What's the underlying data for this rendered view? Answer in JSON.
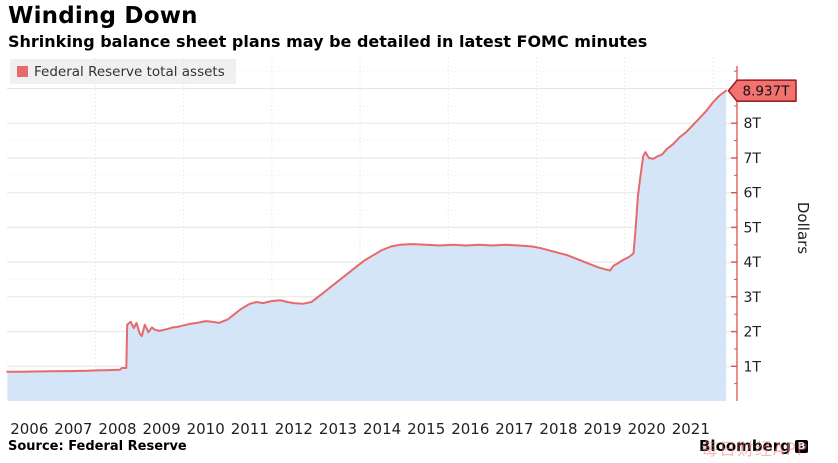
{
  "header": {
    "title": "Winding Down",
    "subtitle": "Shrinking balance sheet plans may be detailed in latest FOMC minutes"
  },
  "footer": {
    "source": "Source: Federal Reserve",
    "brand": "Bloomberg",
    "brand_logo_letter": "B",
    "watermark": "每日财经APP"
  },
  "chart_data": {
    "type": "area",
    "title": "Winding Down",
    "subtitle": "Shrinking balance sheet plans may be detailed in latest FOMC minutes",
    "ylabel": "Dollars",
    "xlabel": "",
    "legend_position": "top-left",
    "x_range": [
      2006,
      2022.55
    ],
    "y_range": [
      0,
      9.75
    ],
    "x_axis": {
      "ticks": [
        "2006",
        "2007",
        "2008",
        "2009",
        "2010",
        "2011",
        "2012",
        "2013",
        "2014",
        "2015",
        "2016",
        "2017",
        "2018",
        "2019",
        "2020",
        "2021"
      ]
    },
    "y_axis": {
      "ticks": [
        "1T",
        "2T",
        "3T",
        "4T",
        "5T",
        "6T",
        "7T",
        "8T"
      ],
      "tick_values": [
        1,
        2,
        3,
        4,
        5,
        6,
        7,
        8
      ],
      "minor_step": 0.5
    },
    "grid": {
      "major_color": "#e5e5e5",
      "minor_color": "#ececec",
      "vertical_color": "#dcdcdc",
      "vertical_years": [
        2008,
        2010,
        2012,
        2014,
        2016,
        2018,
        2020,
        2022
      ]
    },
    "colors": {
      "axis": "#e0504f",
      "flag_fill": "#f3716f",
      "flag_border": "#942726",
      "tick_text": "#1f1f1f"
    },
    "last_value": 8.937,
    "last_value_label": "8.937T",
    "series": [
      {
        "name": "Federal Reserve total assets",
        "color": "#e7696b",
        "fill": "#d5e5f8",
        "units": "trillions of dollars",
        "points": [
          [
            2006.0,
            0.84
          ],
          [
            2006.3,
            0.845
          ],
          [
            2006.6,
            0.85
          ],
          [
            2007.0,
            0.855
          ],
          [
            2007.4,
            0.86
          ],
          [
            2007.8,
            0.87
          ],
          [
            2008.0,
            0.88
          ],
          [
            2008.3,
            0.89
          ],
          [
            2008.55,
            0.9
          ],
          [
            2008.6,
            0.95
          ],
          [
            2008.7,
            0.95
          ],
          [
            2008.72,
            2.2
          ],
          [
            2008.8,
            2.28
          ],
          [
            2008.87,
            2.1
          ],
          [
            2008.93,
            2.25
          ],
          [
            2009.0,
            1.95
          ],
          [
            2009.05,
            1.87
          ],
          [
            2009.12,
            2.2
          ],
          [
            2009.2,
            1.98
          ],
          [
            2009.28,
            2.12
          ],
          [
            2009.35,
            2.05
          ],
          [
            2009.45,
            2.02
          ],
          [
            2009.55,
            2.05
          ],
          [
            2009.65,
            2.08
          ],
          [
            2009.75,
            2.12
          ],
          [
            2009.85,
            2.13
          ],
          [
            2010.0,
            2.18
          ],
          [
            2010.15,
            2.22
          ],
          [
            2010.3,
            2.25
          ],
          [
            2010.5,
            2.3
          ],
          [
            2010.65,
            2.28
          ],
          [
            2010.8,
            2.25
          ],
          [
            2011.0,
            2.35
          ],
          [
            2011.15,
            2.5
          ],
          [
            2011.3,
            2.65
          ],
          [
            2011.5,
            2.8
          ],
          [
            2011.65,
            2.85
          ],
          [
            2011.8,
            2.82
          ],
          [
            2012.0,
            2.88
          ],
          [
            2012.2,
            2.9
          ],
          [
            2012.35,
            2.85
          ],
          [
            2012.5,
            2.82
          ],
          [
            2012.7,
            2.8
          ],
          [
            2012.9,
            2.85
          ],
          [
            2013.0,
            2.95
          ],
          [
            2013.15,
            3.1
          ],
          [
            2013.3,
            3.25
          ],
          [
            2013.5,
            3.45
          ],
          [
            2013.7,
            3.65
          ],
          [
            2013.9,
            3.85
          ],
          [
            2014.1,
            4.05
          ],
          [
            2014.3,
            4.2
          ],
          [
            2014.5,
            4.35
          ],
          [
            2014.7,
            4.45
          ],
          [
            2014.9,
            4.5
          ],
          [
            2015.2,
            4.52
          ],
          [
            2015.5,
            4.5
          ],
          [
            2015.8,
            4.48
          ],
          [
            2016.1,
            4.5
          ],
          [
            2016.4,
            4.48
          ],
          [
            2016.7,
            4.5
          ],
          [
            2017.0,
            4.48
          ],
          [
            2017.3,
            4.5
          ],
          [
            2017.6,
            4.48
          ],
          [
            2017.9,
            4.45
          ],
          [
            2018.1,
            4.4
          ],
          [
            2018.4,
            4.3
          ],
          [
            2018.7,
            4.2
          ],
          [
            2019.0,
            4.05
          ],
          [
            2019.2,
            3.95
          ],
          [
            2019.4,
            3.85
          ],
          [
            2019.6,
            3.78
          ],
          [
            2019.67,
            3.76
          ],
          [
            2019.75,
            3.9
          ],
          [
            2019.85,
            3.97
          ],
          [
            2019.95,
            4.05
          ],
          [
            2020.1,
            4.15
          ],
          [
            2020.2,
            4.25
          ],
          [
            2020.25,
            5.0
          ],
          [
            2020.3,
            5.9
          ],
          [
            2020.35,
            6.4
          ],
          [
            2020.42,
            7.05
          ],
          [
            2020.47,
            7.17
          ],
          [
            2020.55,
            7.0
          ],
          [
            2020.65,
            6.98
          ],
          [
            2020.75,
            7.05
          ],
          [
            2020.85,
            7.1
          ],
          [
            2020.95,
            7.25
          ],
          [
            2021.1,
            7.4
          ],
          [
            2021.25,
            7.6
          ],
          [
            2021.4,
            7.75
          ],
          [
            2021.55,
            7.95
          ],
          [
            2021.7,
            8.15
          ],
          [
            2021.85,
            8.35
          ],
          [
            2022.0,
            8.6
          ],
          [
            2022.15,
            8.8
          ],
          [
            2022.3,
            8.937
          ]
        ]
      }
    ]
  }
}
